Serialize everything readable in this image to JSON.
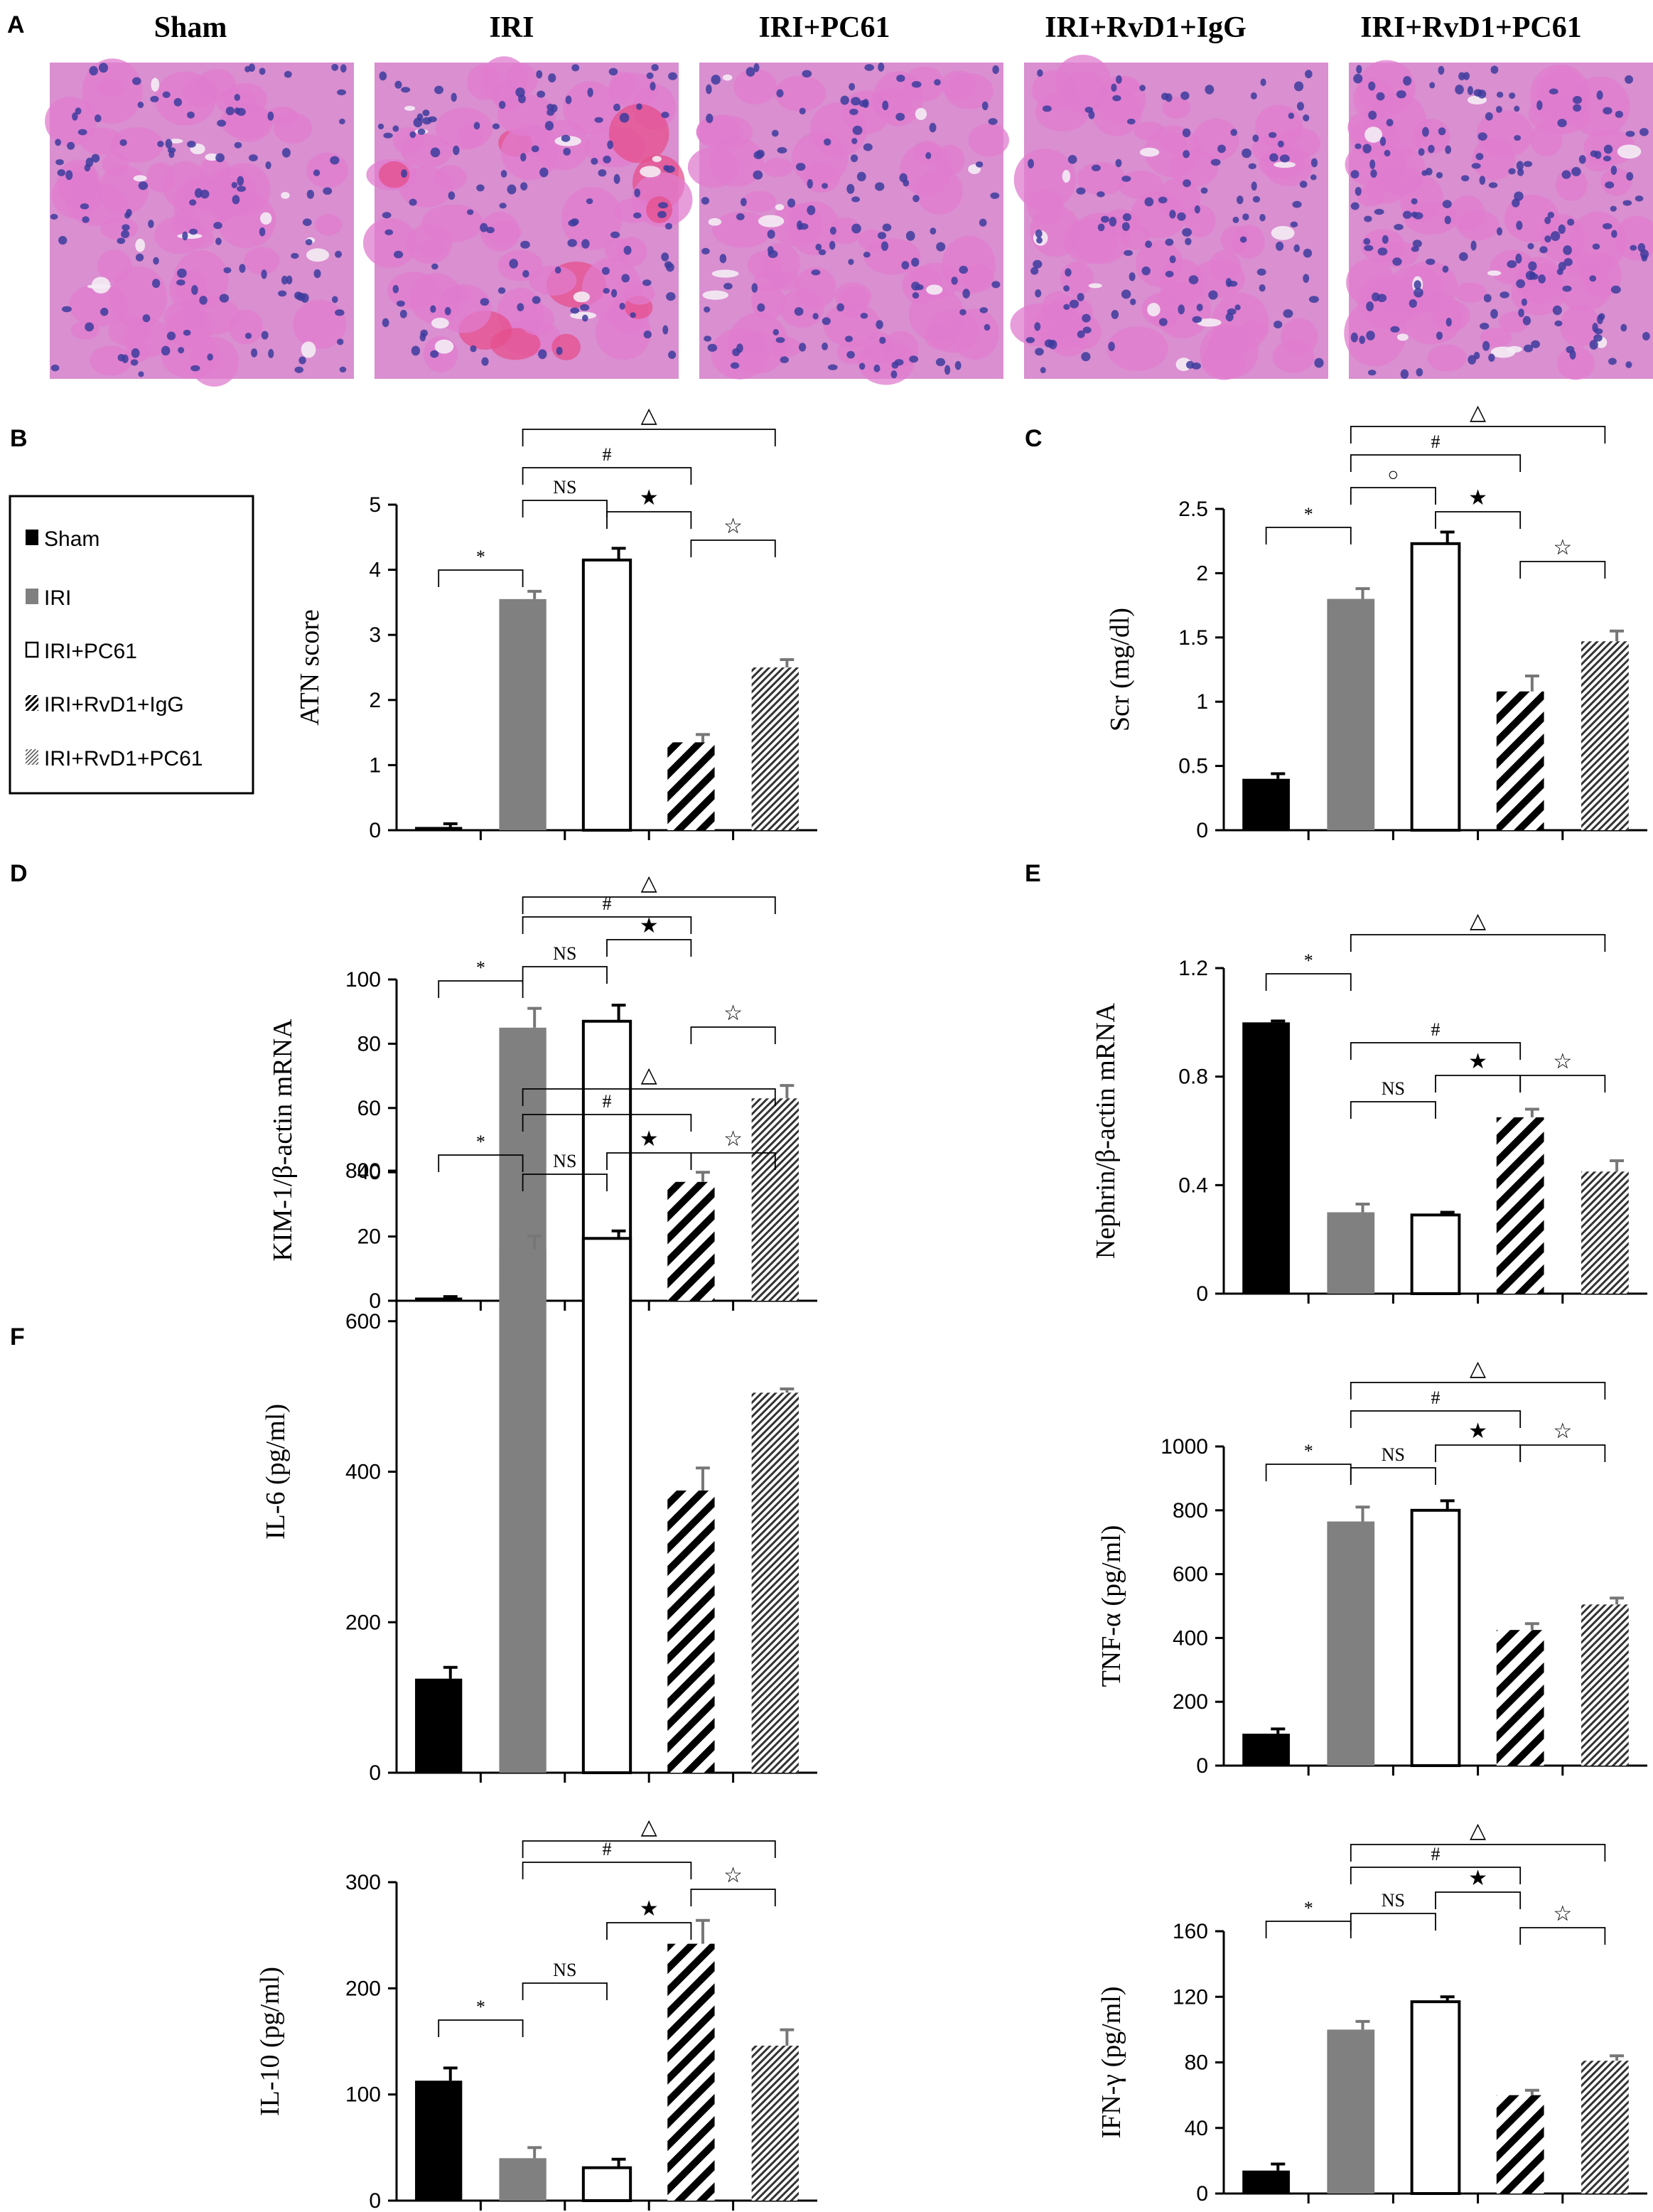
{
  "panel_letters": [
    "A",
    "B",
    "C",
    "D",
    "E",
    "F"
  ],
  "micrographs": {
    "titles": [
      "Sham",
      "IRI",
      "IRI+PC61",
      "IRI+RvD1+IgG",
      "IRI+RvD1+PC61"
    ],
    "palette": {
      "background": "#d98fd0",
      "cytoplasm": "#e07ccf",
      "nuclei": "#3c3c9e",
      "lumen": "#f4ecf4",
      "eosin_cast": "#e64f8c"
    }
  },
  "legend": {
    "items": [
      "Sham",
      "IRI",
      "IRI+PC61",
      "IRI+RvD1+IgG",
      "IRI+RvD1+PC61"
    ]
  },
  "groups": [
    "Sham",
    "IRI",
    "IRI+PC61",
    "IRI+RvD1+IgG",
    "IRI+RvD1+PC61"
  ],
  "colors": {
    "sham": "#000000",
    "iri": "#808080",
    "pc61": "#ffffff",
    "rvd1_igg": "hatched-dense",
    "rvd1_pc61": "hatched-fine"
  },
  "chart_data": [
    {
      "panel": "B",
      "type": "bar",
      "ylabel": "ATN score",
      "ylim": [
        0,
        5
      ],
      "yticks": [
        "0",
        "1",
        "2",
        "3",
        "4",
        "5"
      ],
      "values": [
        0.05,
        3.55,
        4.15,
        1.35,
        2.5
      ],
      "errors": [
        0.05,
        0.12,
        0.18,
        0.12,
        0.12
      ],
      "significance": [
        "*",
        "NS",
        "★",
        "☆",
        "#",
        "△"
      ]
    },
    {
      "panel": "C",
      "type": "bar",
      "ylabel": "Scr (mg/dl)",
      "ylim": [
        0,
        2.5
      ],
      "yticks": [
        "0",
        "0.5",
        "1",
        "1.5",
        "2",
        "2.5"
      ],
      "values": [
        0.4,
        1.8,
        2.23,
        1.08,
        1.47
      ],
      "errors": [
        0.04,
        0.08,
        0.09,
        0.12,
        0.08
      ],
      "significance": [
        "*",
        "○",
        "★",
        "☆",
        "#",
        "△"
      ]
    },
    {
      "panel": "D",
      "type": "bar",
      "ylabel": "KIM-1/β-actin mRNA",
      "ylim": [
        0,
        100
      ],
      "yticks": [
        "0",
        "20",
        "40",
        "60",
        "80",
        "100"
      ],
      "values": [
        1,
        85,
        87,
        37,
        63
      ],
      "errors": [
        0.3,
        6,
        5,
        3,
        4
      ],
      "significance": [
        "*",
        "NS",
        "★",
        "☆",
        "#",
        "△"
      ]
    },
    {
      "panel": "E",
      "type": "bar",
      "ylabel": "Nephrin/β-actin mRNA",
      "ylim": [
        0,
        1.2
      ],
      "yticks": [
        "0",
        "0.4",
        "0.8",
        "1.2"
      ],
      "values": [
        1.0,
        0.3,
        0.29,
        0.65,
        0.45
      ],
      "errors": [
        0.005,
        0.03,
        0.01,
        0.03,
        0.04
      ],
      "significance": [
        "*",
        "NS",
        "★",
        "☆",
        "#",
        "△"
      ]
    },
    {
      "panel": "F1",
      "type": "bar",
      "ylabel": "IL-6 (pg/ml)",
      "ylim": [
        0,
        800
      ],
      "yticks": [
        "0",
        "200",
        "400",
        "600",
        "800"
      ],
      "values": [
        125,
        695,
        710,
        375,
        505
      ],
      "errors": [
        15,
        18,
        10,
        30,
        5
      ],
      "significance": [
        "*",
        "NS",
        "★",
        "☆",
        "#",
        "△"
      ]
    },
    {
      "panel": "F2",
      "type": "bar",
      "ylabel": "TNF-α (pg/ml)",
      "ylim": [
        0,
        1000
      ],
      "yticks": [
        "0",
        "200",
        "400",
        "600",
        "800",
        "1000"
      ],
      "values": [
        100,
        765,
        800,
        425,
        505
      ],
      "errors": [
        15,
        45,
        30,
        20,
        20
      ],
      "significance": [
        "*",
        "NS",
        "★",
        "☆",
        "#",
        "△"
      ]
    },
    {
      "panel": "F3",
      "type": "bar",
      "ylabel": "IL-10 (pg/ml)",
      "ylim": [
        0,
        300
      ],
      "yticks": [
        "0",
        "100",
        "200",
        "300"
      ],
      "values": [
        113,
        40,
        31,
        242,
        146
      ],
      "errors": [
        12,
        10,
        8,
        22,
        15
      ],
      "significance": [
        "*",
        "NS",
        "★",
        "☆",
        "#",
        "△"
      ]
    },
    {
      "panel": "F4",
      "type": "bar",
      "ylabel": "IFN-γ (pg/ml)",
      "ylim": [
        0,
        160
      ],
      "yticks": [
        "0",
        "40",
        "80",
        "120",
        "160"
      ],
      "values": [
        14,
        100,
        117,
        60,
        81
      ],
      "errors": [
        4,
        5,
        3,
        3,
        3
      ],
      "significance": [
        "*",
        "NS",
        "★",
        "☆",
        "#",
        "△"
      ]
    }
  ]
}
